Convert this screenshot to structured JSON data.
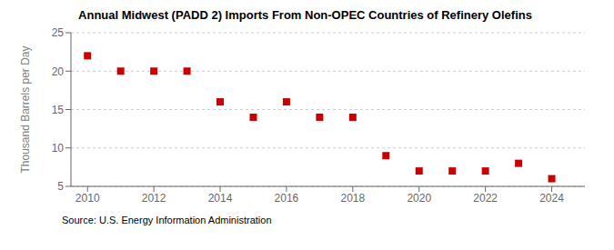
{
  "chart_data": {
    "type": "scatter",
    "title": "Annual Midwest (PADD 2) Imports From Non-OPEC Countries of Refinery Olefins",
    "y_label": "Thousand Barrels per Day",
    "annotation": "Source: U.S. Energy Information Administration",
    "x": [
      2010,
      2011,
      2012,
      2013,
      2014,
      2015,
      2016,
      2017,
      2018,
      2019,
      2020,
      2021,
      2022,
      2023,
      2024
    ],
    "values": [
      22,
      20,
      20,
      20,
      16,
      14,
      16,
      14,
      14,
      9,
      7,
      7,
      7,
      8,
      6
    ],
    "color": "#cc0000",
    "marker": "square",
    "xlim": [
      2009.5,
      2025.0
    ],
    "ylim": [
      5,
      25
    ],
    "xticks": [
      2010,
      2012,
      2014,
      2016,
      2018,
      2020,
      2022,
      2024
    ],
    "yticks": [
      5,
      10,
      15,
      20,
      25
    ],
    "grid": "y"
  }
}
